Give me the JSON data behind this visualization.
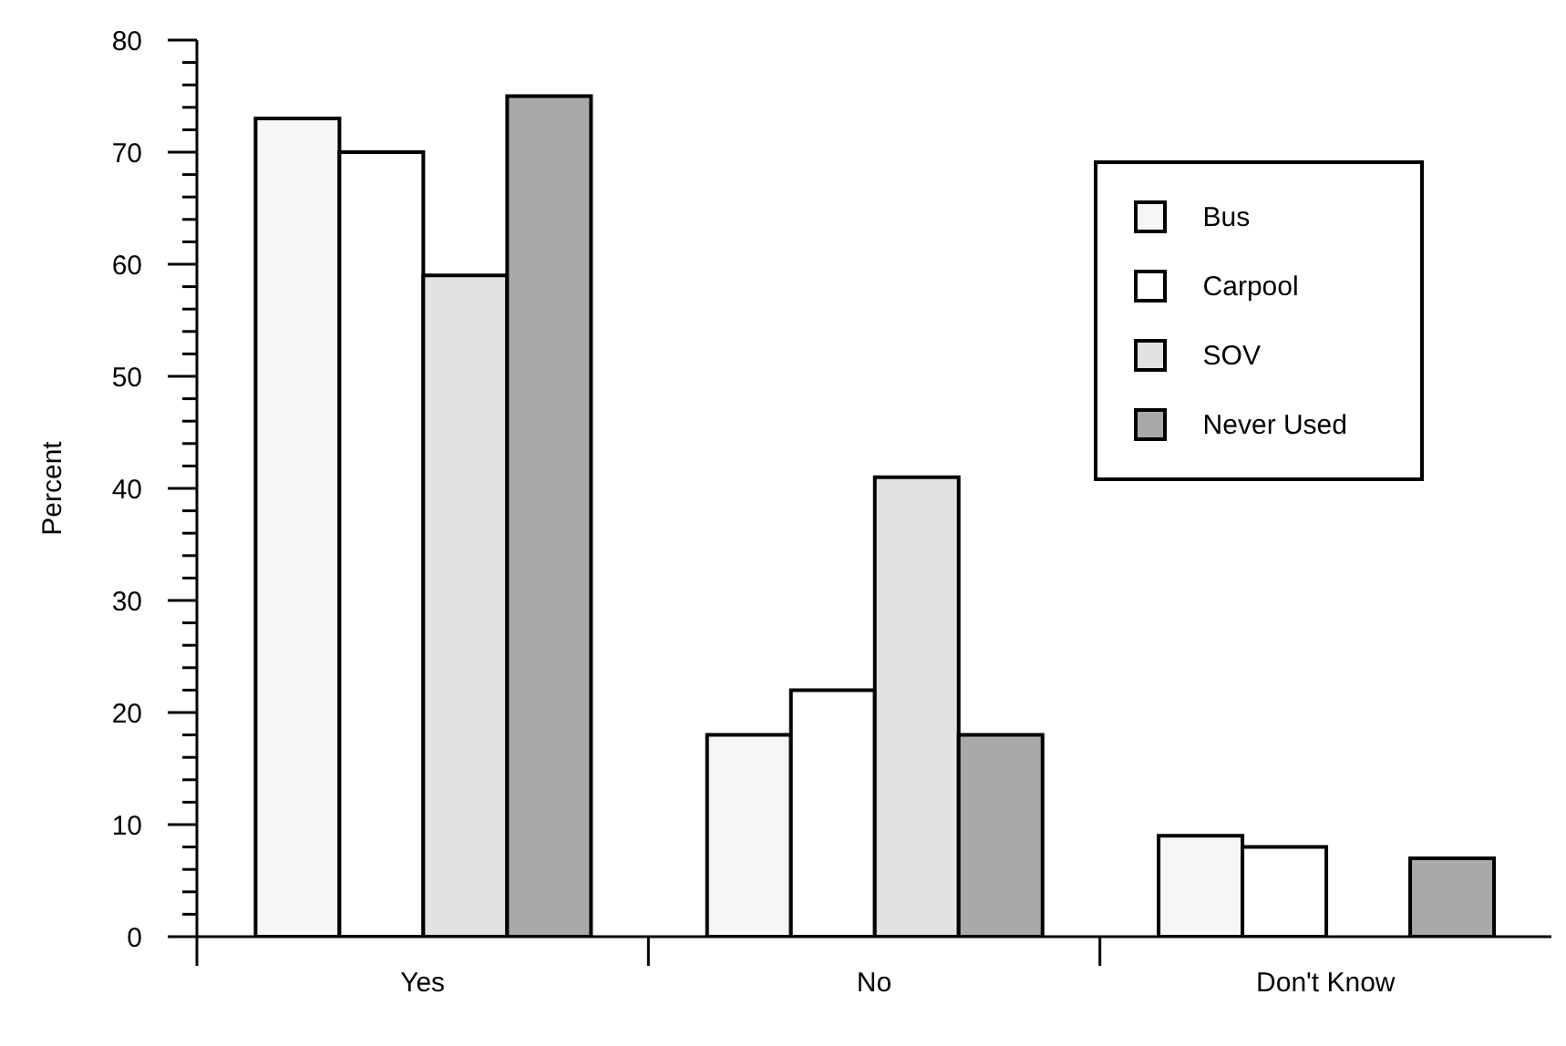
{
  "chart_data": {
    "type": "bar",
    "ylabel": "Percent",
    "categories": [
      "Yes",
      "No",
      "Don't Know"
    ],
    "series": [
      {
        "name": "Bus",
        "color": "#f6f6f6",
        "values": [
          73,
          18,
          9
        ]
      },
      {
        "name": "Carpool",
        "color": "#ffffff",
        "values": [
          70,
          22,
          8
        ]
      },
      {
        "name": "SOV",
        "color": "#e2e2e2",
        "values": [
          59,
          41,
          0
        ]
      },
      {
        "name": "Never Used",
        "color": "#a9a9a9",
        "values": [
          75,
          18,
          7
        ]
      }
    ],
    "ylim": [
      0,
      80
    ],
    "yticks": [
      0,
      {
        "value": 2,
        "label": null
      },
      {
        "value": 4,
        "label": null
      },
      {
        "value": 6,
        "label": null
      },
      {
        "value": 8,
        "label": null
      },
      10,
      {
        "value": 12,
        "label": null
      },
      {
        "value": 14,
        "label": null
      },
      {
        "value": 16,
        "label": null
      },
      {
        "value": 18,
        "label": null
      },
      20,
      {
        "value": 22,
        "label": null
      },
      {
        "value": 24,
        "label": null
      },
      {
        "value": 26,
        "label": null
      },
      {
        "value": 28,
        "label": null
      },
      30,
      {
        "value": 32,
        "label": null
      },
      {
        "value": 34,
        "label": null
      },
      {
        "value": 36,
        "label": null
      },
      {
        "value": 38,
        "label": null
      },
      40,
      {
        "value": 42,
        "label": null
      },
      {
        "value": 44,
        "label": null
      },
      {
        "value": 46,
        "label": null
      },
      {
        "value": 48,
        "label": null
      },
      50,
      {
        "value": 52,
        "label": null
      },
      {
        "value": 54,
        "label": null
      },
      {
        "value": 56,
        "label": null
      },
      {
        "value": 58,
        "label": null
      },
      60,
      {
        "value": 62,
        "label": null
      },
      {
        "value": 64,
        "label": null
      },
      {
        "value": 66,
        "label": null
      },
      {
        "value": 68,
        "label": null
      },
      70,
      {
        "value": 72,
        "label": null
      },
      {
        "value": 74,
        "label": null
      },
      {
        "value": 76,
        "label": null
      },
      {
        "value": 78,
        "label": null
      },
      80
    ],
    "grid": false,
    "legend": "top right"
  }
}
